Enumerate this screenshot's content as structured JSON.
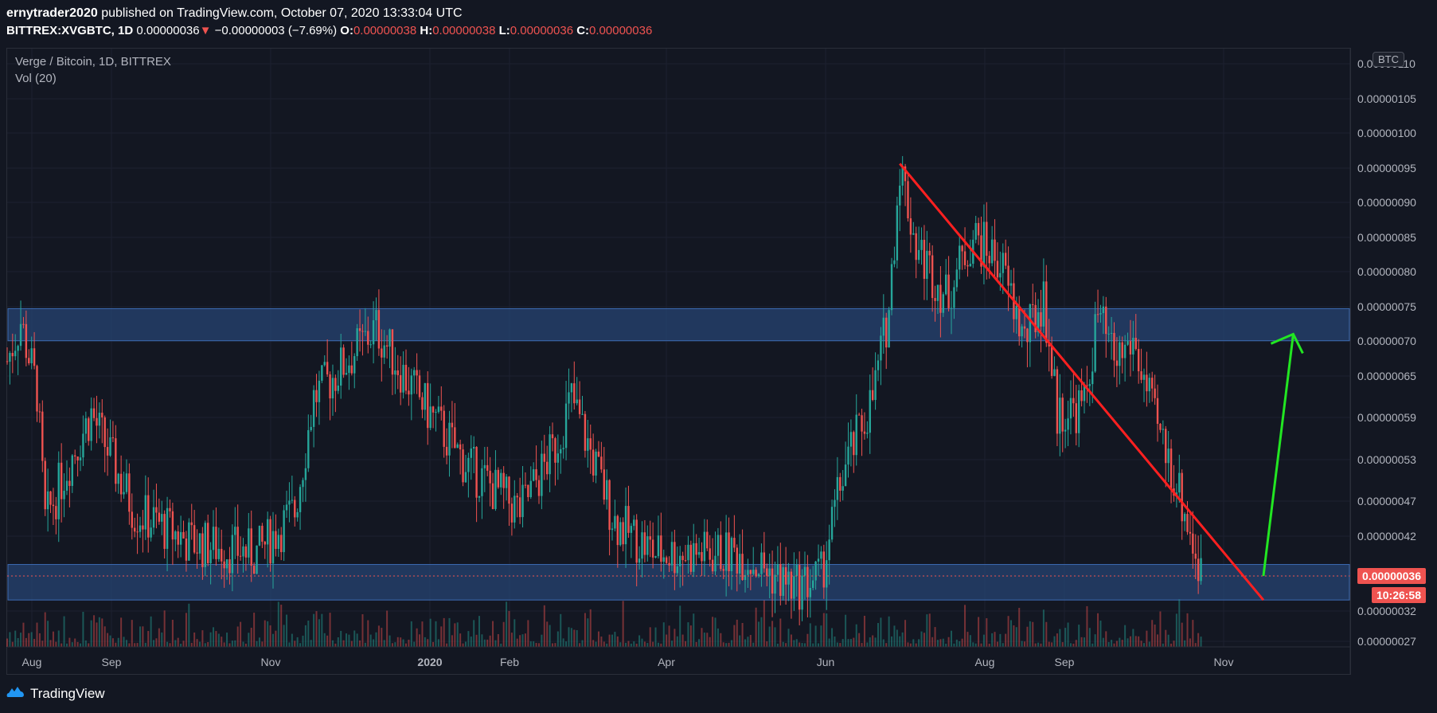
{
  "header": {
    "author": "ernytrader2020",
    "published_text": " published on TradingView.com, October 07, 2020 13:33:04 UTC",
    "symbol": "BITTREX:XVGBTC, 1D",
    "last": "0.00000036",
    "change": "−0.00000003 (−7.69%)",
    "o_label": "O:",
    "o_value": "0.00000038",
    "h_label": "H:",
    "h_value": "0.00000038",
    "l_label": "L:",
    "l_value": "0.00000036",
    "c_label": "C:",
    "c_value": "0.00000036"
  },
  "legend": {
    "title": "Verge / Bitcoin, 1D, BITTREX",
    "volume": "Vol (20)"
  },
  "currency_badge": "BTC",
  "current_price_tag": "0.00000036",
  "countdown_tag": "10:26:58",
  "brand": "TradingView",
  "colors": {
    "background": "#131722",
    "up": "#26a69a",
    "down": "#ef5350",
    "zone": "#2a4a7f",
    "trendline": "#ff2020",
    "arrow": "#22e622"
  },
  "chart_data": {
    "type": "candlestick",
    "x_ticks": [
      "Aug",
      "Sep",
      "Nov",
      "2020",
      "Feb",
      "Apr",
      "Jun",
      "Aug",
      "Sep",
      "Nov"
    ],
    "y_ticks": [
      "0.00000110",
      "0.00000105",
      "0.00000100",
      "0.00000095",
      "0.00000090",
      "0.00000085",
      "0.00000080",
      "0.00000075",
      "0.00000070",
      "0.00000065",
      "0.00000059",
      "0.00000053",
      "0.00000047",
      "0.00000042",
      "0.00000036",
      "0.00000032",
      "0.00000027"
    ],
    "y_scale": "log",
    "series_anchors": [
      {
        "date": "2019-07-25",
        "close": 6e-07
      },
      {
        "date": "2019-07-30",
        "close": 6.6e-07
      },
      {
        "date": "2019-08-05",
        "close": 5.6e-07
      },
      {
        "date": "2019-08-08",
        "close": 4.1e-07
      },
      {
        "date": "2019-08-15",
        "close": 4.6e-07
      },
      {
        "date": "2019-08-25",
        "close": 5.3e-07
      },
      {
        "date": "2019-09-10",
        "close": 4.2e-07
      },
      {
        "date": "2019-10-01",
        "close": 3.9e-07
      },
      {
        "date": "2019-10-25",
        "close": 3.8e-07
      },
      {
        "date": "2019-11-08",
        "close": 4.2e-07
      },
      {
        "date": "2019-11-15",
        "close": 5.5e-07
      },
      {
        "date": "2019-12-08",
        "close": 6.5e-07
      },
      {
        "date": "2019-12-20",
        "close": 5.7e-07
      },
      {
        "date": "2020-01-10",
        "close": 4.7e-07
      },
      {
        "date": "2020-01-30",
        "close": 4.2e-07
      },
      {
        "date": "2020-02-12",
        "close": 4.9e-07
      },
      {
        "date": "2020-02-18",
        "close": 5.5e-07
      },
      {
        "date": "2020-03-05",
        "close": 4.1e-07
      },
      {
        "date": "2020-03-20",
        "close": 3.8e-07
      },
      {
        "date": "2020-04-20",
        "close": 3.8e-07
      },
      {
        "date": "2020-05-10",
        "close": 3.5e-07
      },
      {
        "date": "2020-05-20",
        "close": 3.6e-07
      },
      {
        "date": "2020-05-28",
        "close": 4.6e-07
      },
      {
        "date": "2020-06-08",
        "close": 5.5e-07
      },
      {
        "date": "2020-06-14",
        "close": 6.8e-07
      },
      {
        "date": "2020-06-18",
        "close": 9.6e-07
      },
      {
        "date": "2020-06-24",
        "close": 7.9e-07
      },
      {
        "date": "2020-07-05",
        "close": 7e-07
      },
      {
        "date": "2020-07-15",
        "close": 8.1e-07
      },
      {
        "date": "2020-07-25",
        "close": 7.6e-07
      },
      {
        "date": "2020-08-03",
        "close": 6.3e-07
      },
      {
        "date": "2020-08-10",
        "close": 7e-07
      },
      {
        "date": "2020-08-15",
        "close": 5.3e-07
      },
      {
        "date": "2020-08-25",
        "close": 5.4e-07
      },
      {
        "date": "2020-08-30",
        "close": 6.7e-07
      },
      {
        "date": "2020-09-05",
        "close": 6e-07
      },
      {
        "date": "2020-09-12",
        "close": 6.3e-07
      },
      {
        "date": "2020-09-20",
        "close": 5.2e-07
      },
      {
        "date": "2020-09-28",
        "close": 4.5e-07
      },
      {
        "date": "2020-10-03",
        "close": 4e-07
      },
      {
        "date": "2020-10-07",
        "close": 3.6e-07
      }
    ],
    "support_zone": [
      3.4e-07,
      3.7e-07
    ],
    "resistance_zone": [
      6.3e-07,
      6.8e-07
    ],
    "trendline": [
      {
        "date": "2020-06-18",
        "price": 9.6e-07
      },
      {
        "date": "2020-10-30",
        "price": 3.4e-07
      }
    ],
    "projection_arrow": [
      {
        "date": "2020-10-30",
        "price": 3.6e-07
      },
      {
        "date": "2020-11-10",
        "price": 6.4e-07
      }
    ]
  }
}
